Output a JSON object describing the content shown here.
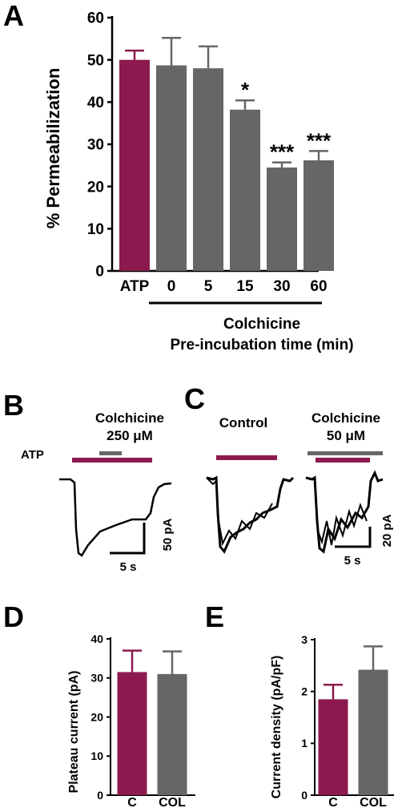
{
  "colors": {
    "atp": "#8c1a4e",
    "colchicine": "#666666",
    "axis": "#000000"
  },
  "chart_data": [
    {
      "panel": "A",
      "type": "bar",
      "categories": [
        "ATP",
        "0",
        "5",
        "15",
        "30",
        "60"
      ],
      "values": [
        50,
        48.7,
        48,
        38.2,
        24.5,
        26.2
      ],
      "errors": [
        2.2,
        6.5,
        5.2,
        2.2,
        1.2,
        2.2
      ],
      "significance": [
        "",
        "",
        "",
        "*",
        "***",
        "***"
      ],
      "bar_colors": [
        "#8c1a4e",
        "#666666",
        "#666666",
        "#666666",
        "#666666",
        "#666666"
      ],
      "ylabel": "% Permeabilization",
      "ylim": [
        0,
        60
      ],
      "yticks": [
        "0",
        "10",
        "20",
        "30",
        "40",
        "50",
        "60"
      ],
      "group_label_line1": "Colchicine",
      "group_label_line2": "Pre-incubation time (min)"
    },
    {
      "panel": "D",
      "type": "bar",
      "categories": [
        "C",
        "COL"
      ],
      "values": [
        31.5,
        31
      ],
      "errors": [
        5.5,
        5.8
      ],
      "bar_colors": [
        "#8c1a4e",
        "#666666"
      ],
      "ylabel": "Plateau current (pA)",
      "ylim": [
        0,
        40
      ],
      "yticks": [
        "0",
        "10",
        "20",
        "30",
        "40"
      ]
    },
    {
      "panel": "E",
      "type": "bar",
      "categories": [
        "C",
        "COL"
      ],
      "values": [
        1.85,
        2.42
      ],
      "errors": [
        0.28,
        0.45
      ],
      "bar_colors": [
        "#8c1a4e",
        "#666666"
      ],
      "ylabel": "Current density (pA/pF)",
      "ylim": [
        0,
        3
      ],
      "yticks": [
        "0",
        "1",
        "2",
        "3"
      ]
    }
  ],
  "panel_b": {
    "letter": "B",
    "drug_line1": "Colchicine",
    "drug_line2": "250 μM",
    "atp_label": "ATP",
    "scale_time": "5 s",
    "scale_current": "50 pA"
  },
  "panel_c": {
    "letter": "C",
    "control_label": "Control",
    "drug_line1": "Colchicine",
    "drug_line2": "50 μM",
    "scale_time": "5 s",
    "scale_current": "20 pA"
  },
  "panel_letters": {
    "a": "A",
    "d": "D",
    "e": "E"
  }
}
